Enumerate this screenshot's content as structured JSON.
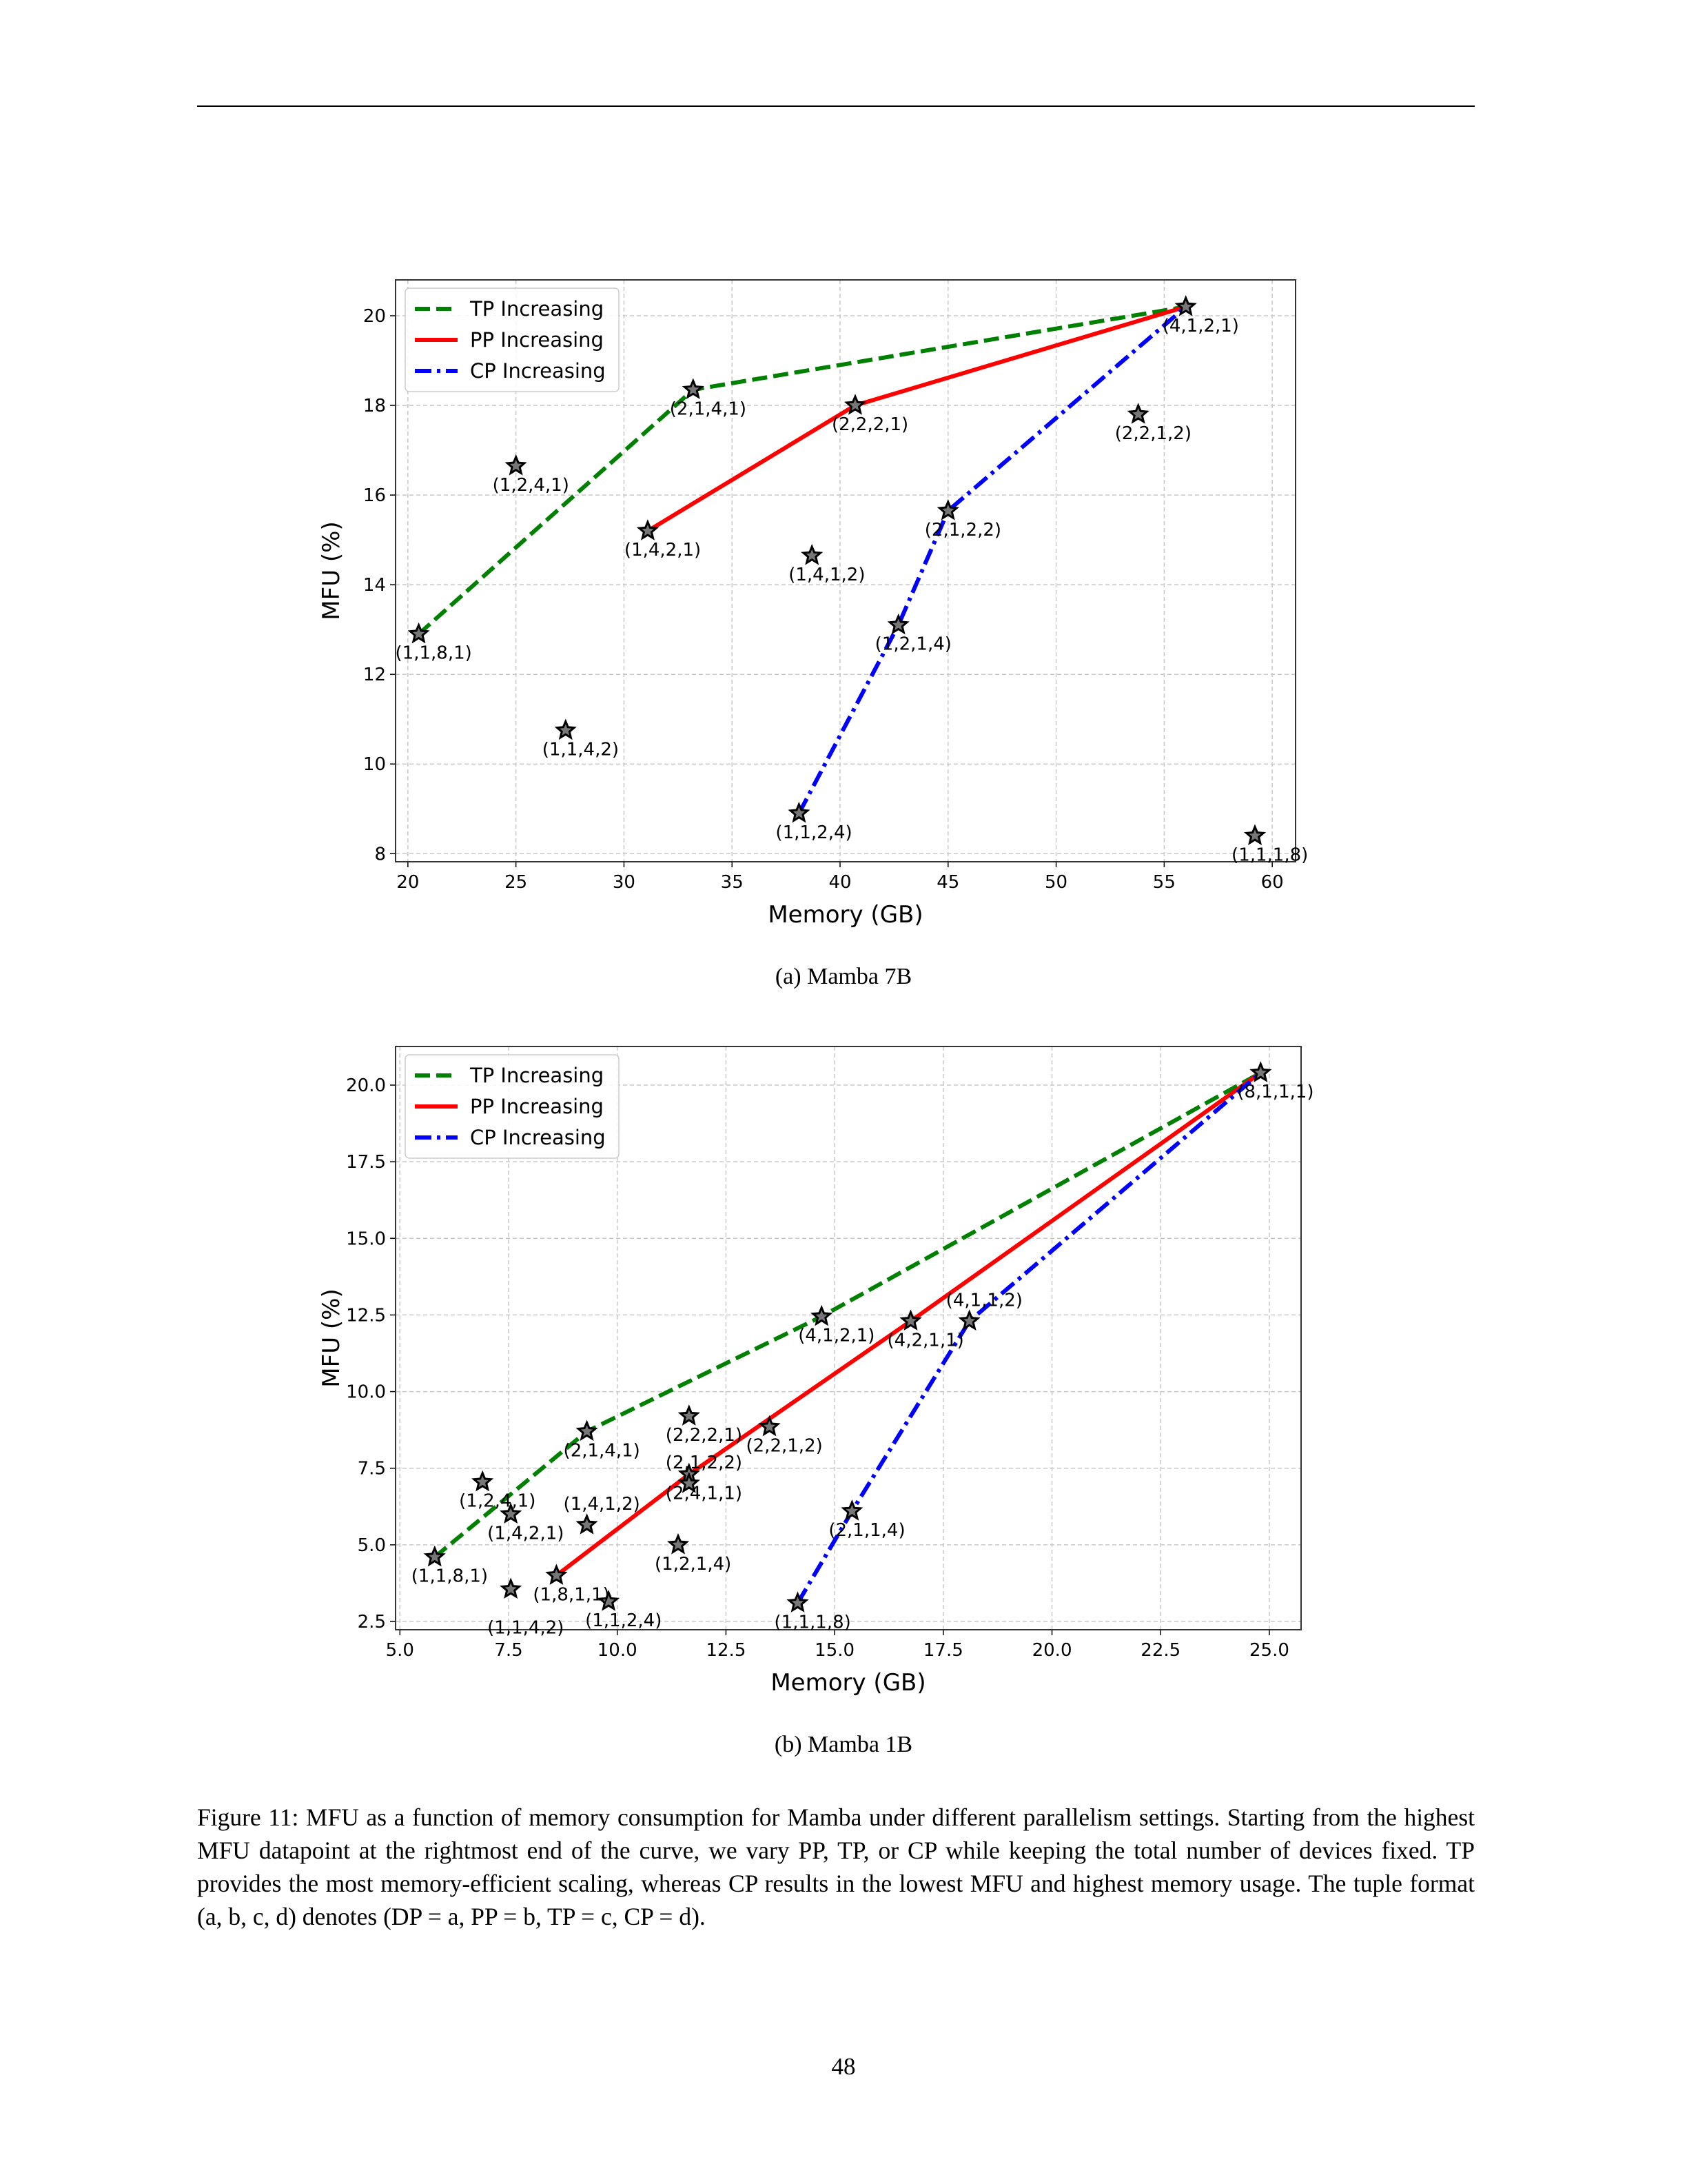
{
  "figure_caption": "Figure 11: MFU as a function of memory consumption for Mamba under different parallelism settings. Starting from the highest MFU datapoint at the rightmost end of the curve, we vary PP, TP, or CP while keeping the total number of devices fixed. TP provides the most memory-efficient scaling, whereas CP results in the lowest MFU and highest memory usage. The tuple format (a, b, c, d) denotes (DP = a, PP = b, TP = c, CP = d).",
  "page_number": "48",
  "chart_data": [
    {
      "type": "scatter",
      "subcaption": "(a) Mamba 7B",
      "xlabel": "Memory (GB)",
      "ylabel": "MFU (%)",
      "xlim": [
        19.43,
        61.08
      ],
      "ylim": [
        7.82,
        20.8
      ],
      "xticks": [
        20,
        25,
        30,
        35,
        40,
        45,
        50,
        55,
        60
      ],
      "yticks": [
        8,
        10,
        12,
        14,
        16,
        18,
        20
      ],
      "ytick_labels": [
        "8",
        "10",
        "12",
        "14",
        "16",
        "18",
        "20"
      ],
      "grid": true,
      "legend": "top-left",
      "points": [
        {
          "label": "(4,1,2,1)",
          "x": 56.0,
          "y": 20.2
        },
        {
          "label": "(2,1,4,1)",
          "x": 33.2,
          "y": 18.35
        },
        {
          "label": "(1,1,8,1)",
          "x": 20.5,
          "y": 12.9
        },
        {
          "label": "(2,2,2,1)",
          "x": 40.7,
          "y": 18.0
        },
        {
          "label": "(1,4,2,1)",
          "x": 31.1,
          "y": 15.2
        },
        {
          "label": "(2,1,2,2)",
          "x": 45.0,
          "y": 15.65
        },
        {
          "label": "(1,2,1,4)",
          "x": 42.7,
          "y": 13.1
        },
        {
          "label": "(1,1,2,4)",
          "x": 38.1,
          "y": 8.9
        },
        {
          "label": "(2,2,1,2)",
          "x": 53.8,
          "y": 17.8
        },
        {
          "label": "(1,2,4,1)",
          "x": 25.0,
          "y": 16.65
        },
        {
          "label": "(1,4,1,2)",
          "x": 38.7,
          "y": 14.65
        },
        {
          "label": "(1,1,4,2)",
          "x": 27.3,
          "y": 10.75
        },
        {
          "label": "(1,1,1,8)",
          "x": 59.2,
          "y": 8.4
        }
      ],
      "series": [
        {
          "name": "TP Increasing",
          "color": "#008000",
          "style": "dashed",
          "path": [
            "(1,1,8,1)",
            "(2,1,4,1)",
            "(4,1,2,1)"
          ]
        },
        {
          "name": "PP Increasing",
          "color": "#ff0000",
          "style": "solid",
          "path": [
            "(1,4,2,1)",
            "(2,2,2,1)",
            "(4,1,2,1)"
          ]
        },
        {
          "name": "CP Increasing",
          "color": "#0000ff",
          "style": "dashdot",
          "path": [
            "(1,1,2,4)",
            "(1,2,1,4)",
            "(2,1,2,2)",
            "(4,1,2,1)"
          ]
        }
      ]
    },
    {
      "type": "scatter",
      "subcaption": "(b) Mamba 1B",
      "xlabel": "Memory (GB)",
      "ylabel": "MFU (%)",
      "xlim": [
        4.9,
        25.73
      ],
      "ylim": [
        2.23,
        21.26
      ],
      "xticks": [
        5.0,
        7.5,
        10.0,
        12.5,
        15.0,
        17.5,
        20.0,
        22.5,
        25.0
      ],
      "xtick_labels": [
        "5.0",
        "7.5",
        "10.0",
        "12.5",
        "15.0",
        "17.5",
        "20.0",
        "22.5",
        "25.0"
      ],
      "yticks": [
        2.5,
        5.0,
        7.5,
        10.0,
        12.5,
        15.0,
        17.5,
        20.0
      ],
      "ytick_labels": [
        "2.5",
        "5.0",
        "7.5",
        "10.0",
        "12.5",
        "15.0",
        "17.5",
        "20.0"
      ],
      "grid": true,
      "legend": "top-left",
      "points": [
        {
          "label": "(8,1,1,1)",
          "x": 24.8,
          "y": 20.4
        },
        {
          "label": "(4,1,2,1)",
          "x": 14.7,
          "y": 12.45
        },
        {
          "label": "(2,1,4,1)",
          "x": 9.3,
          "y": 8.7
        },
        {
          "label": "(1,1,8,1)",
          "x": 5.8,
          "y": 4.6
        },
        {
          "label": "(4,2,1,1)",
          "x": 16.75,
          "y": 12.3
        },
        {
          "label": "(2,4,1,1)",
          "x": 11.65,
          "y": 7.3
        },
        {
          "label": "(1,8,1,1)",
          "x": 8.6,
          "y": 4.0
        },
        {
          "label": "(4,1,1,2)",
          "x": 18.1,
          "y": 12.3
        },
        {
          "label": "(2,1,1,4)",
          "x": 15.4,
          "y": 6.1
        },
        {
          "label": "(1,1,1,8)",
          "x": 14.15,
          "y": 3.1
        },
        {
          "label": "(2,2,2,1)",
          "x": 11.65,
          "y": 9.2
        },
        {
          "label": "(2,2,1,2)",
          "x": 13.5,
          "y": 8.85
        },
        {
          "label": "(2,1,2,2)",
          "x": 11.65,
          "y": 7.0
        },
        {
          "label": "(1,2,4,1)",
          "x": 6.9,
          "y": 7.05
        },
        {
          "label": "(1,4,2,1)",
          "x": 7.55,
          "y": 6.0
        },
        {
          "label": "(1,4,1,2)",
          "x": 9.3,
          "y": 5.65
        },
        {
          "label": "(1,2,1,4)",
          "x": 11.4,
          "y": 5.0
        },
        {
          "label": "(1,1,4,2)",
          "x": 7.55,
          "y": 3.55
        },
        {
          "label": "(1,1,2,4)",
          "x": 9.8,
          "y": 3.15
        }
      ],
      "series": [
        {
          "name": "TP Increasing",
          "color": "#008000",
          "style": "dashed",
          "path": [
            "(1,1,8,1)",
            "(2,1,4,1)",
            "(4,1,2,1)",
            "(8,1,1,1)"
          ]
        },
        {
          "name": "PP Increasing",
          "color": "#ff0000",
          "style": "solid",
          "path": [
            "(1,8,1,1)",
            "(2,4,1,1)",
            "(4,2,1,1)",
            "(8,1,1,1)"
          ]
        },
        {
          "name": "CP Increasing",
          "color": "#0000ff",
          "style": "dashdot",
          "path": [
            "(1,1,1,8)",
            "(2,1,1,4)",
            "(4,1,1,2)",
            "(8,1,1,1)"
          ]
        }
      ]
    }
  ]
}
